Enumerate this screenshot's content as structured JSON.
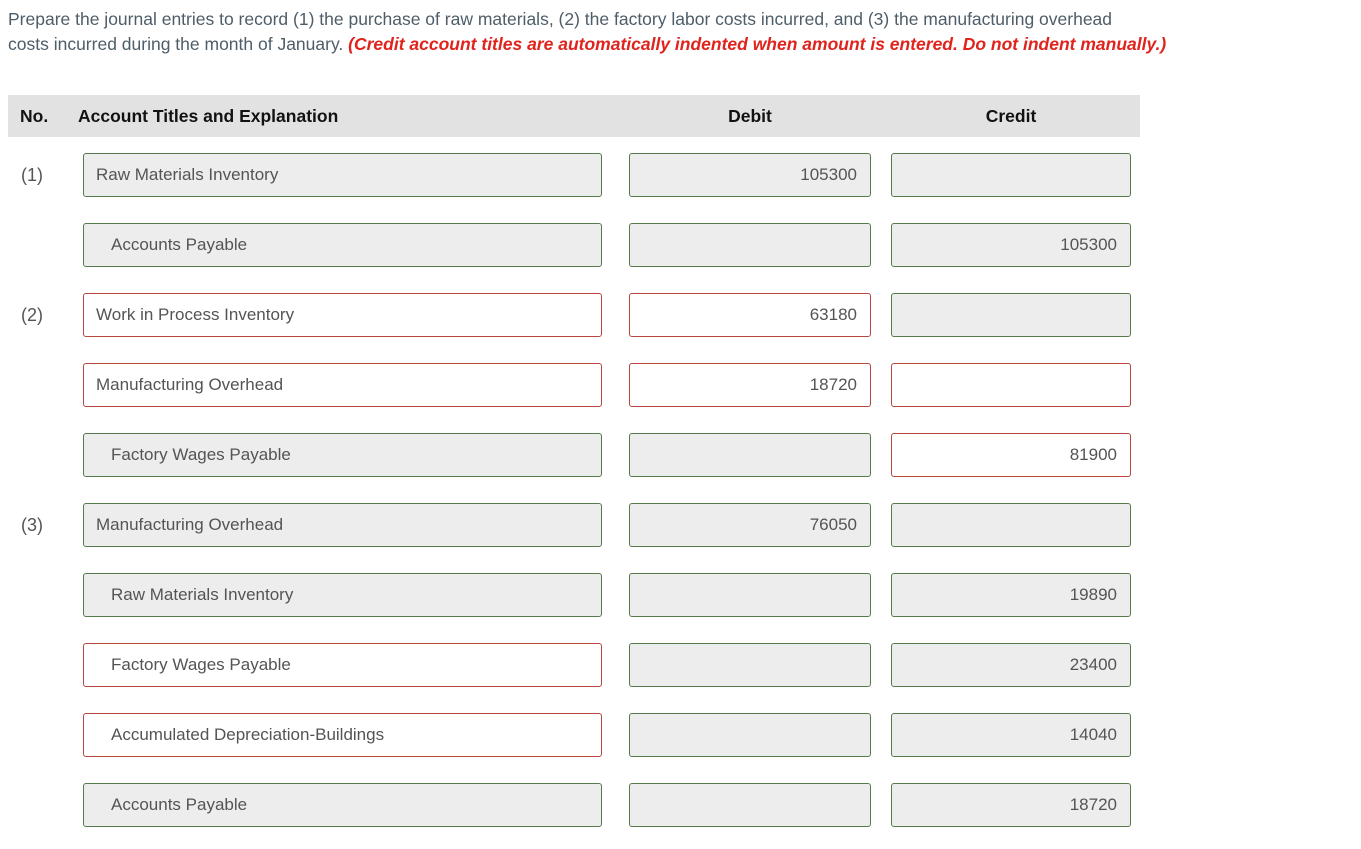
{
  "instructions": {
    "line1": "Prepare the journal entries to record (1) the purchase of raw materials, (2) the factory labor costs incurred, and (3) the manufacturing overhead",
    "line2": "costs incurred during the month of January.",
    "note": "(Credit account titles are automatically indented when amount is entered. Do not indent manually.)"
  },
  "table": {
    "headers": {
      "no": "No.",
      "account": "Account Titles and Explanation",
      "debit": "Debit",
      "credit": "Credit"
    }
  },
  "rows": [
    {
      "no": "(1)",
      "account": "Raw Materials Inventory",
      "indent": false,
      "account_state": "correct",
      "debit": "105300",
      "debit_state": "correct",
      "credit": "",
      "credit_state": "correct"
    },
    {
      "no": "",
      "account": "Accounts Payable",
      "indent": true,
      "account_state": "correct",
      "debit": "",
      "debit_state": "correct",
      "credit": "105300",
      "credit_state": "correct"
    },
    {
      "no": "(2)",
      "account": "Work in Process Inventory",
      "indent": false,
      "account_state": "incorrect",
      "debit": "63180",
      "debit_state": "incorrect",
      "credit": "",
      "credit_state": "correct"
    },
    {
      "no": "",
      "account": "Manufacturing Overhead",
      "indent": false,
      "account_state": "incorrect",
      "debit": "18720",
      "debit_state": "incorrect",
      "credit": "",
      "credit_state": "incorrect"
    },
    {
      "no": "",
      "account": "Factory Wages Payable",
      "indent": true,
      "account_state": "correct",
      "debit": "",
      "debit_state": "correct",
      "credit": "81900",
      "credit_state": "incorrect"
    },
    {
      "no": "(3)",
      "account": "Manufacturing Overhead",
      "indent": false,
      "account_state": "correct",
      "debit": "76050",
      "debit_state": "correct",
      "credit": "",
      "credit_state": "correct"
    },
    {
      "no": "",
      "account": "Raw Materials Inventory",
      "indent": true,
      "account_state": "correct",
      "debit": "",
      "debit_state": "correct",
      "credit": "19890",
      "credit_state": "correct"
    },
    {
      "no": "",
      "account": "Factory Wages Payable",
      "indent": true,
      "account_state": "incorrect",
      "debit": "",
      "debit_state": "correct",
      "credit": "23400",
      "credit_state": "correct"
    },
    {
      "no": "",
      "account": "Accumulated Depreciation-Buildings",
      "indent": true,
      "account_state": "incorrect",
      "debit": "",
      "debit_state": "correct",
      "credit": "14040",
      "credit_state": "correct"
    },
    {
      "no": "",
      "account": "Accounts Payable",
      "indent": true,
      "account_state": "correct",
      "debit": "",
      "debit_state": "correct",
      "credit": "18720",
      "credit_state": "correct"
    }
  ],
  "colors": {
    "correct_border_green": "#567a4a",
    "incorrect_border_red": "#b5473e",
    "filled_field_gray": "#ecedec",
    "header_bar_gray": "#e2e2e2",
    "note_red": "#e0231d",
    "instruction_text": "#4e5d68",
    "field_text": "#545454"
  }
}
